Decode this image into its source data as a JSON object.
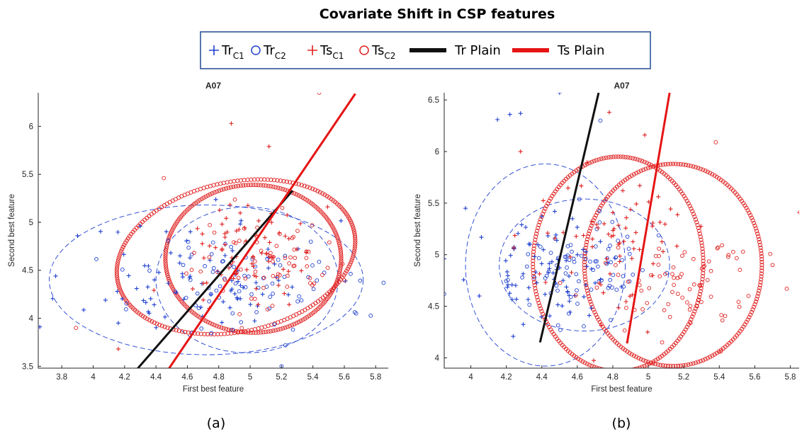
{
  "figure_title": "Covariate Shift in CSP features",
  "legend": {
    "items": [
      {
        "marker": "plus",
        "color": "#2040d0",
        "base": "Tr",
        "sub": "C1"
      },
      {
        "marker": "circle",
        "color": "#2040d0",
        "base": "Tr",
        "sub": "C2"
      },
      {
        "marker": "plus",
        "color": "#e02020",
        "base": "Ts",
        "sub": "C1"
      },
      {
        "marker": "circle",
        "color": "#e02020",
        "base": "Ts",
        "sub": "C2"
      },
      {
        "marker": "line",
        "color": "#111111",
        "base": "Tr Plain",
        "sub": ""
      },
      {
        "marker": "line",
        "color": "#e51515",
        "base": "Ts Plain",
        "sub": ""
      }
    ]
  },
  "colors": {
    "train": "#2040d0",
    "test": "#e02020",
    "tr_plain": "#111111",
    "ts_plain": "#e51515"
  },
  "chart_data": [
    {
      "type": "scatter",
      "caption": "(a)",
      "title": "A07",
      "xlabel": "First best feature",
      "ylabel": "Second best feature",
      "xlim": [
        3.65,
        5.88
      ],
      "ylim": [
        3.48,
        6.35
      ],
      "xticks": [
        3.8,
        4.0,
        4.2,
        4.4,
        4.6,
        4.8,
        5.0,
        5.2,
        5.4,
        5.6,
        5.8
      ],
      "xtick_labels": [
        "3.8",
        "4",
        "4.2",
        "4.4",
        "4.6",
        "4.8",
        "5",
        "5.2",
        "5.4",
        "5.6",
        "5.8"
      ],
      "yticks": [
        3.5,
        4.0,
        4.5,
        5.0,
        5.5,
        6.0
      ],
      "ytick_labels": [
        "3.5",
        "4",
        "4.5",
        "5",
        "5.5",
        "6"
      ],
      "grid": false,
      "seed": 11,
      "series": [
        {
          "key": "tr_c1",
          "marker": "plus",
          "color": "#2040d0",
          "center": [
            4.7,
            4.42
          ],
          "spread": [
            0.38,
            0.3
          ],
          "count": 80,
          "extra": [
            [
              3.65,
              5.0
            ],
            [
              3.9,
              4.86
            ],
            [
              4.3,
              4.96
            ],
            [
              3.66,
              3.91
            ],
            [
              4.16,
              3.95
            ]
          ]
        },
        {
          "key": "tr_c2",
          "marker": "circle",
          "color": "#2040d0",
          "center": [
            4.95,
            4.35
          ],
          "spread": [
            0.33,
            0.3
          ],
          "count": 80,
          "extra": [
            [
              5.85,
              4.37
            ],
            [
              5.2,
              3.5
            ]
          ]
        },
        {
          "key": "ts_c1",
          "marker": "plus",
          "color": "#e02020",
          "center": [
            4.98,
            4.72
          ],
          "spread": [
            0.22,
            0.25
          ],
          "count": 70,
          "extra": [
            [
              4.88,
              6.03
            ],
            [
              5.12,
              5.79
            ],
            [
              4.16,
              3.68
            ]
          ]
        },
        {
          "key": "ts_c2",
          "marker": "circle",
          "color": "#e02020",
          "center": [
            5.1,
            4.62
          ],
          "spread": [
            0.23,
            0.24
          ],
          "count": 75,
          "extra": [
            [
              5.44,
              6.35
            ],
            [
              4.45,
              5.46
            ],
            [
              3.89,
              3.9
            ]
          ]
        }
      ],
      "ellipses": [
        {
          "color": "#2040d0",
          "style": "dashed",
          "cx": 4.72,
          "cy": 4.4,
          "rx": 1.0,
          "ry": 0.78,
          "angle": 0
        },
        {
          "color": "#2040d0",
          "style": "dashed",
          "cx": 4.98,
          "cy": 4.4,
          "rx": 0.58,
          "ry": 0.76,
          "angle": 0
        },
        {
          "color": "#e02020",
          "style": "markers",
          "cx": 4.91,
          "cy": 4.64,
          "rx": 0.77,
          "ry": 0.78,
          "angle": 12
        },
        {
          "color": "#e02020",
          "style": "markers",
          "cx": 5.02,
          "cy": 4.62,
          "rx": 0.56,
          "ry": 0.77,
          "angle": 0
        }
      ],
      "lines": [
        {
          "key": "tr_plain",
          "color": "#111111",
          "x": [
            4.28,
            5.27
          ],
          "y": [
            3.47,
            5.33
          ]
        },
        {
          "key": "ts_plain",
          "color": "#e51515",
          "x": [
            4.48,
            5.67
          ],
          "y": [
            3.47,
            6.34
          ]
        }
      ]
    },
    {
      "type": "scatter",
      "caption": "(b)",
      "title": "A07",
      "xlabel": "First best feature",
      "ylabel": "Second best feature",
      "xlim": [
        3.85,
        5.85
      ],
      "ylim": [
        3.9,
        6.57
      ],
      "xticks": [
        4.0,
        4.2,
        4.4,
        4.6,
        4.8,
        5.0,
        5.2,
        5.4,
        5.6,
        5.8
      ],
      "xtick_labels": [
        "4",
        "4.2",
        "4.4",
        "4.6",
        "4.8",
        "5",
        "5.2",
        "5.4",
        "5.6",
        "5.8"
      ],
      "yticks": [
        4.0,
        4.5,
        5.0,
        5.5,
        6.0,
        6.5
      ],
      "ytick_labels": [
        "4",
        "4.5",
        "5",
        "5.5",
        "6",
        "6.5"
      ],
      "grid": false,
      "seed": 23,
      "series": [
        {
          "key": "tr_c1",
          "marker": "plus",
          "color": "#2040d0",
          "center": [
            4.42,
            4.82
          ],
          "spread": [
            0.17,
            0.24
          ],
          "count": 80,
          "extra": [
            [
              4.5,
              6.57
            ],
            [
              4.22,
              6.36
            ],
            [
              4.28,
              6.37
            ],
            [
              4.15,
              6.31
            ],
            [
              3.97,
              5.45
            ],
            [
              3.85,
              4.96
            ]
          ]
        },
        {
          "key": "tr_c2",
          "marker": "circle",
          "color": "#2040d0",
          "center": [
            4.62,
            4.86
          ],
          "spread": [
            0.2,
            0.22
          ],
          "count": 80,
          "extra": [
            [
              4.73,
              6.3
            ],
            [
              3.85,
              4.62
            ]
          ]
        },
        {
          "key": "ts_c1",
          "marker": "plus",
          "color": "#e02020",
          "center": [
            4.8,
            5.1
          ],
          "spread": [
            0.22,
            0.38
          ],
          "count": 70,
          "extra": [
            [
              4.78,
              6.38
            ],
            [
              4.98,
              6.16
            ],
            [
              4.28,
              6.0
            ],
            [
              5.85,
              5.41
            ]
          ]
        },
        {
          "key": "ts_c2",
          "marker": "circle",
          "color": "#e02020",
          "center": [
            5.15,
            4.75
          ],
          "spread": [
            0.22,
            0.25
          ],
          "count": 75,
          "extra": [
            [
              5.38,
              6.09
            ],
            [
              5.78,
              4.67
            ],
            [
              5.7,
              4.9
            ]
          ]
        }
      ],
      "ellipses": [
        {
          "color": "#2040d0",
          "style": "dashed",
          "cx": 4.42,
          "cy": 4.9,
          "rx": 0.45,
          "ry": 0.98,
          "angle": 0
        },
        {
          "color": "#2040d0",
          "style": "dashed",
          "cx": 4.64,
          "cy": 4.9,
          "rx": 0.48,
          "ry": 0.64,
          "angle": 0
        },
        {
          "color": "#e02020",
          "style": "markers",
          "cx": 4.83,
          "cy": 4.91,
          "rx": 0.48,
          "ry": 1.04,
          "angle": 0
        },
        {
          "color": "#e02020",
          "style": "markers",
          "cx": 5.14,
          "cy": 4.9,
          "rx": 0.5,
          "ry": 0.98,
          "angle": 0
        }
      ],
      "lines": [
        {
          "key": "tr_plain",
          "color": "#111111",
          "x": [
            4.39,
            4.72
          ],
          "y": [
            4.15,
            6.57
          ]
        },
        {
          "key": "ts_plain",
          "color": "#e51515",
          "x": [
            4.88,
            5.12
          ],
          "y": [
            4.14,
            6.57
          ]
        }
      ]
    }
  ]
}
